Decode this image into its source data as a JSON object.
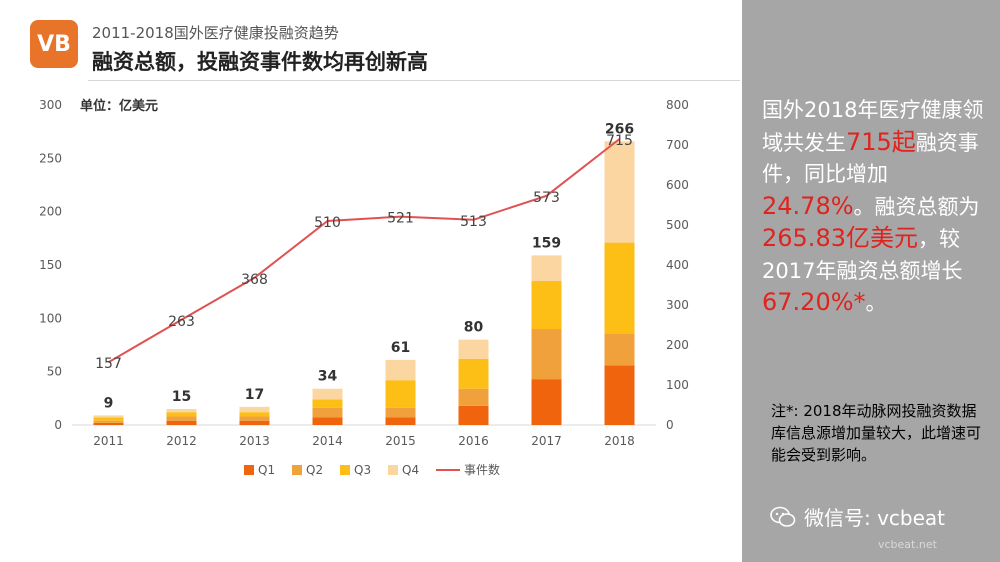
{
  "header": {
    "logo_text": "VB",
    "subtitle": "2011-2018国外医疗健康投融资趋势",
    "title": "融资总额，投融资事件数均再创新高"
  },
  "chart_data": {
    "type": "bar",
    "stacked": true,
    "unit_label": "单位：亿美元",
    "categories": [
      "2011",
      "2012",
      "2013",
      "2014",
      "2015",
      "2016",
      "2017",
      "2018"
    ],
    "series": [
      {
        "name": "Q1",
        "color": "#f0640e",
        "values": [
          2,
          4,
          4,
          7,
          7,
          18,
          43,
          56
        ]
      },
      {
        "name": "Q2",
        "color": "#f0a13c",
        "values": [
          2,
          4,
          4,
          9,
          9,
          16,
          47,
          30
        ]
      },
      {
        "name": "Q3",
        "color": "#fdbe16",
        "values": [
          3,
          4,
          4,
          8,
          26,
          28,
          45,
          85
        ]
      },
      {
        "name": "Q4",
        "color": "#fbd6a0",
        "values": [
          2,
          3,
          5,
          10,
          19,
          18,
          24,
          95
        ]
      }
    ],
    "totals": [
      9,
      15,
      17,
      34,
      61,
      80,
      159,
      266
    ],
    "line": {
      "name": "事件数",
      "color": "#e05252",
      "values": [
        157,
        263,
        368,
        510,
        521,
        513,
        573,
        715
      ]
    },
    "y_left": {
      "min": 0,
      "max": 300,
      "ticks": [
        0,
        50,
        100,
        150,
        200,
        250,
        300
      ]
    },
    "y_right": {
      "min": 0,
      "max": 800,
      "ticks": [
        0,
        100,
        200,
        300,
        400,
        500,
        600,
        700,
        800
      ]
    },
    "legend_position": "bottom",
    "grid": false
  },
  "side_panel": {
    "p1": "国外2018年医疗健康领域共发生",
    "h1": "715起",
    "p2": "融资事件，同比增加",
    "h2": "24.78%",
    "p3": "。融资总额为",
    "h3": "265.83亿美元",
    "p4": "，较2017年融资总额增长",
    "h4": "67.20%*",
    "p5": "。",
    "note": "注*: 2018年动脉网投融资数据库信息源增加量较大，此增速可能会受到影响。",
    "watermark": "微信号: vcbeat",
    "watermark_sub": "vcbeat.net"
  }
}
